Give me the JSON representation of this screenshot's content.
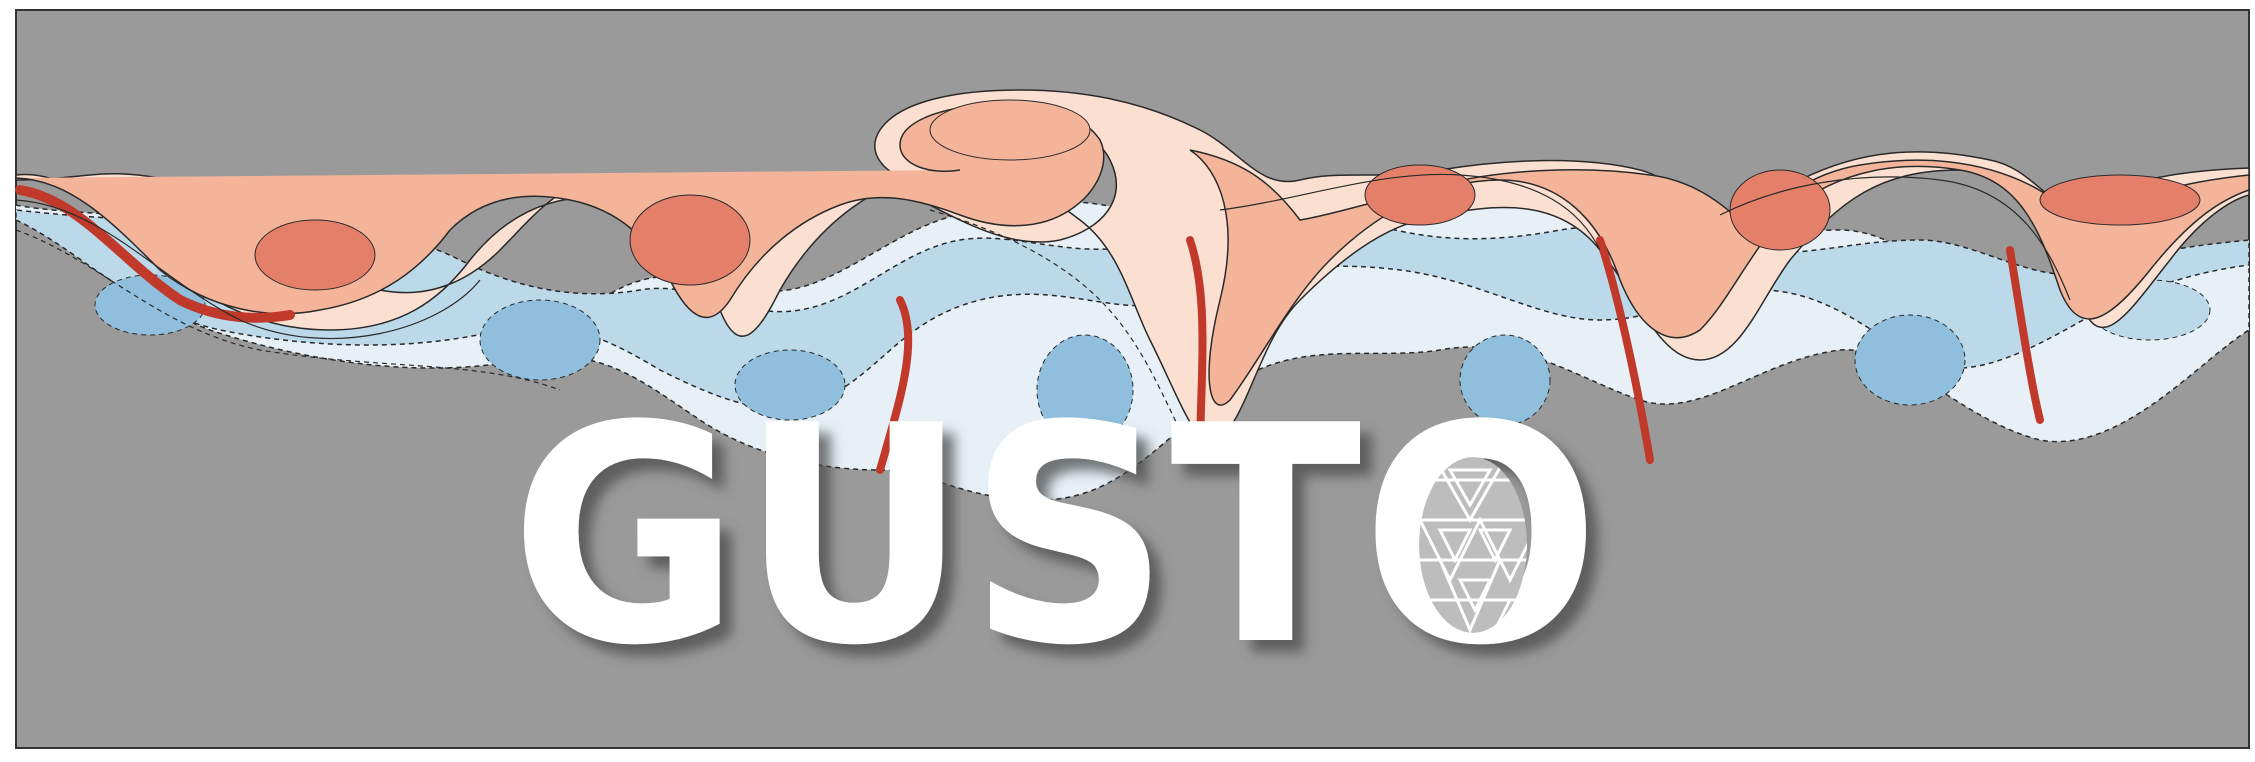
{
  "logo": {
    "text": "GUSTO",
    "text_color": "#ffffff",
    "shadow_color": "#4a4a4a"
  },
  "colors": {
    "background_panel": "#9a9a9a",
    "frame_border": "#333333",
    "warm_dark": "#c0392b",
    "warm_mid": "#e4806a",
    "warm_light": "#f3b49a",
    "warm_pale": "#fbe0d2",
    "cool_pale": "#e6f0f6",
    "cool_light": "#bcd9ea",
    "cool_mid": "#8fbfdc",
    "contour_line": "#2a2a2a"
  },
  "icons": {
    "logo_o_fill": "icosahedral-mesh-globe-icon"
  }
}
